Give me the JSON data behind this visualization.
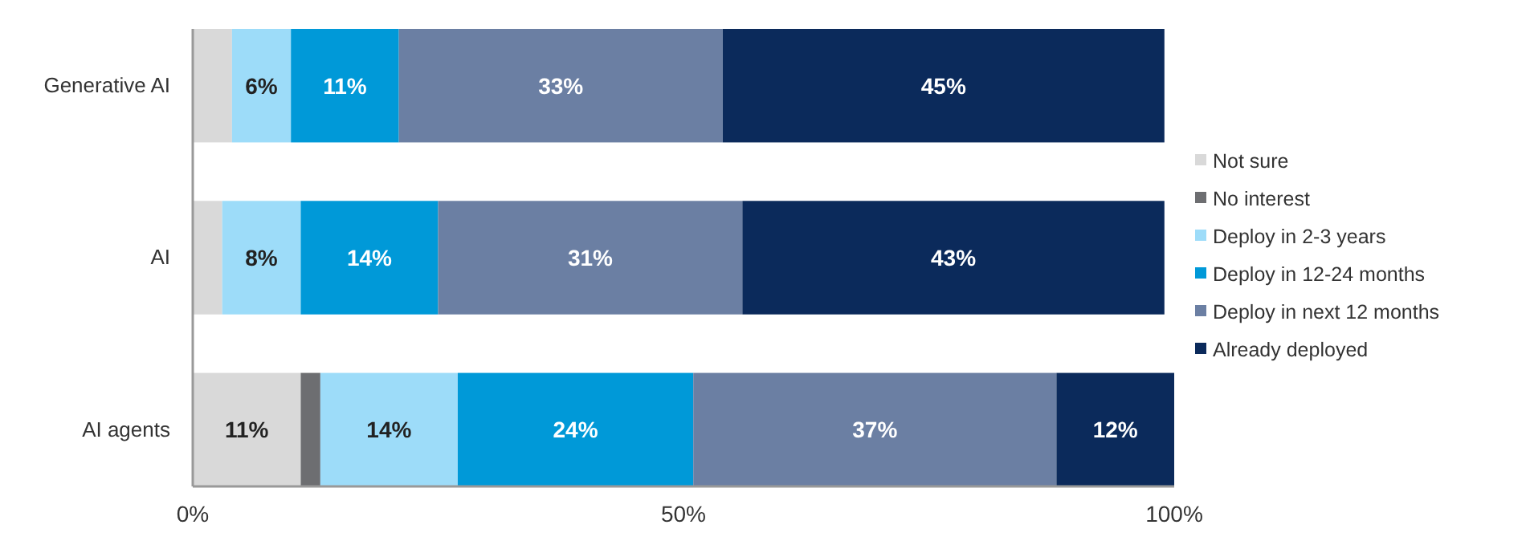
{
  "chart_data": {
    "type": "bar",
    "orientation": "horizontal",
    "stacked": true,
    "categories": [
      "Generative AI",
      "AI",
      "AI agents"
    ],
    "xlim": [
      0,
      100
    ],
    "xticks": [
      {
        "value": 0,
        "label": "0%"
      },
      {
        "value": 50,
        "label": "50%"
      },
      {
        "value": 100,
        "label": "100%"
      }
    ],
    "legend": "right",
    "grid": false,
    "series": [
      {
        "name": "Not sure",
        "color": "#d9d9d9",
        "values": [
          4,
          3,
          11
        ],
        "value_labels": [
          null,
          null,
          "11%"
        ]
      },
      {
        "name": "No interest",
        "color": "#6d6e71",
        "values": [
          0,
          0,
          2
        ],
        "value_labels": [
          null,
          null,
          null
        ]
      },
      {
        "name": "Deploy in 2-3 years",
        "color": "#9ddcf9",
        "values": [
          6,
          8,
          14
        ],
        "value_labels": [
          "6%",
          "8%",
          "14%"
        ]
      },
      {
        "name": "Deploy in 12-24 months",
        "color": "#0099d8",
        "values": [
          11,
          14,
          24
        ],
        "value_labels": [
          "11%",
          "14%",
          "24%"
        ]
      },
      {
        "name": "Deploy in next 12 months",
        "color": "#6b7fa3",
        "values": [
          33,
          31,
          37
        ],
        "value_labels": [
          "33%",
          "31%",
          "37%"
        ]
      },
      {
        "name": "Already deployed",
        "color": "#0b2a5b",
        "values": [
          45,
          43,
          12
        ],
        "value_labels": [
          "45%",
          "43%",
          "12%"
        ]
      }
    ]
  }
}
